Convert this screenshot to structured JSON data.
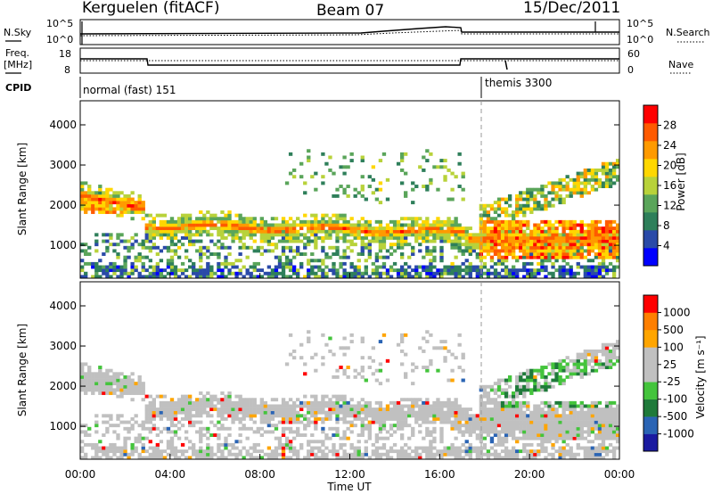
{
  "header": {
    "station": "Kerguelen (fitACF)",
    "beam": "Beam 07",
    "date": "15/Dec/2011"
  },
  "noise_panel": {
    "left_label": "N.Sky",
    "right_label": "N.Search",
    "left_ticks": [
      "10^5",
      "10^0"
    ],
    "right_ticks": [
      "10^5",
      "10^0"
    ]
  },
  "freq_panel": {
    "left_label_1": "Freq.",
    "left_label_2": "[MHz]",
    "right_label": "Nave",
    "left_ticks": [
      "18",
      "8"
    ],
    "right_ticks": [
      "60",
      "0"
    ]
  },
  "cpid": {
    "label": "CPID",
    "mode1": "normal (fast) 151",
    "mode2": "themis 3300"
  },
  "colors": {
    "power_scale": [
      "#0000ff",
      "#2a4aa8",
      "#2e7f5a",
      "#5aa55a",
      "#b8d23a",
      "#ffd700",
      "#ff9a00",
      "#ff5a00",
      "#ff0000"
    ],
    "velocity_scale": [
      "#1a1aa0",
      "#2a64b4",
      "#1f7a3a",
      "#44c43c",
      "#c0c0c0",
      "#c0c0c0",
      "#ffa500",
      "#ff7f00",
      "#ff0000"
    ]
  },
  "chart_data": [
    {
      "type": "heatmap",
      "panel": "power",
      "ylabel": "Slant Range [km]",
      "ylim": [
        180,
        4600
      ],
      "yticks": [
        "1000",
        "2000",
        "3000",
        "4000"
      ],
      "colorbar_label": "Power [dB]",
      "colorbar_ticks": [
        "4",
        "8",
        "12",
        "16",
        "20",
        "24",
        "28"
      ],
      "colorbar_range": [
        0,
        32
      ]
    },
    {
      "type": "heatmap",
      "panel": "velocity",
      "ylabel": "Slant Range [km]",
      "xlabel": "Time UT",
      "ylim": [
        180,
        4600
      ],
      "yticks": [
        "1000",
        "2000",
        "3000",
        "4000"
      ],
      "xticks": [
        "00:00",
        "04:00",
        "08:00",
        "12:00",
        "16:00",
        "20:00",
        "00:00"
      ],
      "colorbar_label": "Velocity [m s⁻¹]",
      "colorbar_ticks": [
        "1000",
        "500",
        "100",
        "25",
        "-25",
        "-100",
        "-500",
        "-1000"
      ]
    }
  ]
}
